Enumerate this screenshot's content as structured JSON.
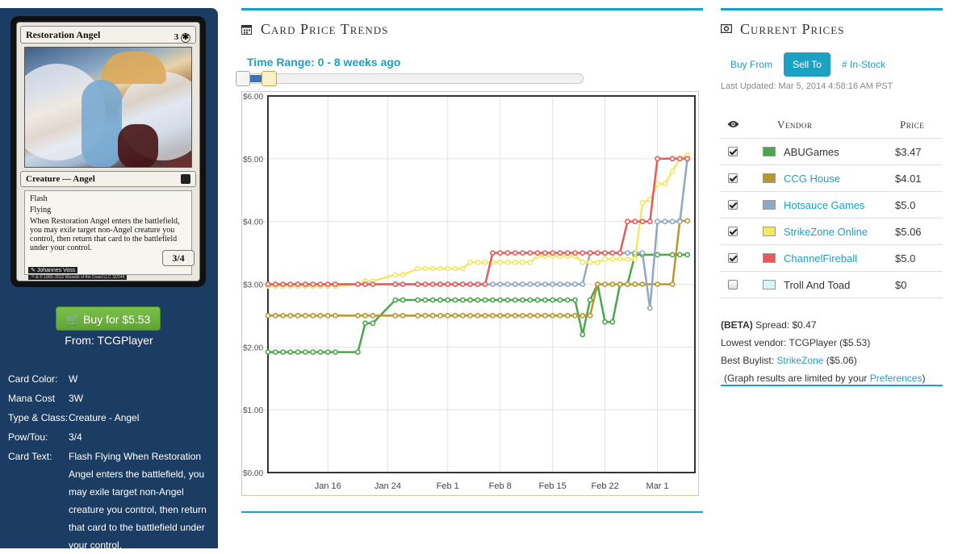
{
  "card": {
    "name": "Restoration Angel",
    "mana_text": "3",
    "mana_symbol": "✱",
    "type_line": "Creature — Angel",
    "ability_1": "Flash",
    "ability_2": "Flying",
    "rules_text": "When Restoration Angel enters the battlefield, you may exile target non-Angel creature you control, then return that card to the battlefield under your control.",
    "power_toughness": "3/4",
    "artist": "Johannes Voss",
    "copyright": "™ & © 1993–2012 Wizards of the Coast LLC 32/244"
  },
  "buy": {
    "label": "Buy for $5.53",
    "from": "From: TCGPlayer"
  },
  "info": [
    {
      "key": "Card Color:",
      "value": "W"
    },
    {
      "key": "Mana Cost",
      "value": "3W"
    },
    {
      "key": "Type & Class:",
      "value": "Creature - Angel"
    },
    {
      "key": "Pow/Tou:",
      "value": "3/4"
    },
    {
      "key": "Card Text:",
      "value": "Flash Flying When Restoration Angel enters the battlefield, you may exile target non-Angel creature you control, then return that card to the battlefield under your control."
    }
  ],
  "trends": {
    "title": "Card Price Trends",
    "icon": "calendar-icon",
    "range_label": "Time Range: 0 - 8 weeks ago"
  },
  "prices": {
    "title": "Current Prices",
    "icon": "money-icon",
    "tabs": [
      "Buy From",
      "Sell To",
      "# In-Stock"
    ],
    "active_tab": "Sell To",
    "last_updated": "Last Updated: Mar 5, 2014 4:58:16 AM PST",
    "col_visibility_icon": "eye-icon",
    "col_vendor": "Vendor",
    "col_price": "Price",
    "vendors": [
      {
        "name": "ABUGames",
        "price": "$3.47",
        "color": "#4aa74a",
        "checked": true,
        "link": false
      },
      {
        "name": "CCG House",
        "price": "$4.01",
        "color": "#b8962e",
        "checked": true,
        "link": true
      },
      {
        "name": "Hotsauce Games",
        "price": "$5.0",
        "color": "#8fa8c4",
        "checked": true,
        "link": true
      },
      {
        "name": "StrikeZone Online",
        "price": "$5.06",
        "color": "#f5e663",
        "checked": true,
        "link": true
      },
      {
        "name": "ChannelFireball",
        "price": "$5.0",
        "color": "#e85a5a",
        "checked": true,
        "link": true
      },
      {
        "name": "Troll And Toad",
        "price": "$0",
        "color": "#d8f6fa",
        "checked": false,
        "link": false
      }
    ],
    "beta_label": "(BETA)",
    "spread": "Spread: $0.47",
    "lowest_vendor": "Lowest vendor: TCGPlayer ($5.53)",
    "best_buylist_prefix": "Best Buylist:",
    "best_buylist_link": "StrikeZone",
    "best_buylist_suffix": "($5.06)",
    "graph_note_prefix": "(Graph results are limited by your",
    "graph_note_link": "Preferences",
    "graph_note_suffix": ")"
  },
  "chart_data": {
    "type": "line",
    "title": "",
    "xlabel": "",
    "ylabel": "",
    "x_ticks": [
      "Jan 16",
      "Jan 24",
      "Feb 1",
      "Feb 8",
      "Feb 15",
      "Feb 22",
      "Mar 1"
    ],
    "x_tick_days": [
      16,
      24,
      32,
      39,
      46,
      53,
      60
    ],
    "xlim_days": [
      8,
      65
    ],
    "y_ticks": [
      "$0.00",
      "$1.00",
      "$2.00",
      "$3.00",
      "$4.00",
      "$5.00",
      "$6.00"
    ],
    "ylim": [
      0,
      6
    ],
    "grid": true,
    "series": [
      {
        "name": "ABUGames",
        "color": "#4aa74a",
        "points": [
          [
            8,
            1.92
          ],
          [
            9,
            1.92
          ],
          [
            10,
            1.92
          ],
          [
            11,
            1.92
          ],
          [
            12,
            1.92
          ],
          [
            13,
            1.92
          ],
          [
            14,
            1.92
          ],
          [
            15,
            1.92
          ],
          [
            16,
            1.92
          ],
          [
            17,
            1.92
          ],
          [
            20,
            1.92
          ],
          [
            21,
            2.38
          ],
          [
            22,
            2.38
          ],
          [
            25,
            2.75
          ],
          [
            26,
            2.75
          ],
          [
            28,
            2.75
          ],
          [
            29,
            2.75
          ],
          [
            30,
            2.75
          ],
          [
            31,
            2.75
          ],
          [
            32,
            2.75
          ],
          [
            33,
            2.75
          ],
          [
            34,
            2.75
          ],
          [
            35,
            2.75
          ],
          [
            36,
            2.75
          ],
          [
            37,
            2.75
          ],
          [
            38,
            2.75
          ],
          [
            39,
            2.75
          ],
          [
            40,
            2.75
          ],
          [
            41,
            2.75
          ],
          [
            42,
            2.75
          ],
          [
            43,
            2.75
          ],
          [
            44,
            2.75
          ],
          [
            45,
            2.75
          ],
          [
            46,
            2.75
          ],
          [
            47,
            2.75
          ],
          [
            48,
            2.75
          ],
          [
            49,
            2.75
          ],
          [
            50,
            2.2
          ],
          [
            51,
            2.75
          ],
          [
            52,
            3.0
          ],
          [
            53,
            2.4
          ],
          [
            54,
            2.4
          ],
          [
            55,
            3.0
          ],
          [
            56,
            3.0
          ],
          [
            57,
            3.47
          ],
          [
            58,
            3.47
          ],
          [
            60,
            3.47
          ],
          [
            62,
            3.47
          ],
          [
            63,
            3.47
          ],
          [
            64,
            3.47
          ]
        ]
      },
      {
        "name": "CCG House",
        "color": "#b8962e",
        "points": [
          [
            8,
            2.5
          ],
          [
            9,
            2.5
          ],
          [
            10,
            2.5
          ],
          [
            11,
            2.5
          ],
          [
            12,
            2.5
          ],
          [
            13,
            2.5
          ],
          [
            14,
            2.5
          ],
          [
            15,
            2.5
          ],
          [
            16,
            2.5
          ],
          [
            17,
            2.5
          ],
          [
            20,
            2.5
          ],
          [
            21,
            2.5
          ],
          [
            22,
            2.5
          ],
          [
            25,
            2.5
          ],
          [
            26,
            2.5
          ],
          [
            28,
            2.5
          ],
          [
            29,
            2.5
          ],
          [
            30,
            2.5
          ],
          [
            31,
            2.5
          ],
          [
            32,
            2.5
          ],
          [
            33,
            2.5
          ],
          [
            34,
            2.5
          ],
          [
            35,
            2.5
          ],
          [
            36,
            2.5
          ],
          [
            37,
            2.5
          ],
          [
            38,
            2.5
          ],
          [
            39,
            2.5
          ],
          [
            40,
            2.5
          ],
          [
            41,
            2.5
          ],
          [
            42,
            2.5
          ],
          [
            43,
            2.5
          ],
          [
            44,
            2.5
          ],
          [
            45,
            2.5
          ],
          [
            46,
            2.5
          ],
          [
            47,
            2.5
          ],
          [
            48,
            2.5
          ],
          [
            49,
            2.5
          ],
          [
            50,
            2.5
          ],
          [
            51,
            2.5
          ],
          [
            52,
            3.0
          ],
          [
            53,
            3.0
          ],
          [
            54,
            3.0
          ],
          [
            55,
            3.0
          ],
          [
            56,
            3.0
          ],
          [
            57,
            3.0
          ],
          [
            58,
            3.0
          ],
          [
            60,
            3.0
          ],
          [
            62,
            3.0
          ],
          [
            63,
            4.01
          ],
          [
            64,
            4.01
          ]
        ]
      },
      {
        "name": "Hotsauce Games",
        "color": "#8fa8c4",
        "points": [
          [
            8,
            3.0
          ],
          [
            12,
            3.0
          ],
          [
            17,
            3.0
          ],
          [
            22,
            3.0
          ],
          [
            25,
            3.0
          ],
          [
            28,
            3.0
          ],
          [
            31,
            3.0
          ],
          [
            33,
            3.0
          ],
          [
            36,
            3.0
          ],
          [
            38,
            3.0
          ],
          [
            39,
            3.0
          ],
          [
            40,
            3.0
          ],
          [
            41,
            3.0
          ],
          [
            42,
            3.0
          ],
          [
            43,
            3.0
          ],
          [
            44,
            3.0
          ],
          [
            45,
            3.0
          ],
          [
            46,
            3.0
          ],
          [
            47,
            3.0
          ],
          [
            48,
            3.0
          ],
          [
            49,
            3.0
          ],
          [
            50,
            3.0
          ],
          [
            51,
            3.5
          ],
          [
            52,
            3.5
          ],
          [
            53,
            3.5
          ],
          [
            54,
            3.5
          ],
          [
            55,
            3.5
          ],
          [
            56,
            3.5
          ],
          [
            57,
            3.5
          ],
          [
            58,
            3.5
          ],
          [
            59,
            2.62
          ],
          [
            60,
            4.0
          ],
          [
            61,
            4.0
          ],
          [
            62,
            4.0
          ],
          [
            63,
            4.0
          ],
          [
            64,
            5.0
          ]
        ]
      },
      {
        "name": "StrikeZone Online",
        "color": "#f5e663",
        "points": [
          [
            8,
            2.97
          ],
          [
            9,
            2.97
          ],
          [
            10,
            2.97
          ],
          [
            11,
            2.97
          ],
          [
            12,
            2.97
          ],
          [
            13,
            2.97
          ],
          [
            14,
            2.97
          ],
          [
            15,
            2.97
          ],
          [
            16,
            2.97
          ],
          [
            17,
            2.97
          ],
          [
            20,
            3.0
          ],
          [
            21,
            3.05
          ],
          [
            22,
            3.05
          ],
          [
            25,
            3.15
          ],
          [
            26,
            3.15
          ],
          [
            28,
            3.25
          ],
          [
            29,
            3.25
          ],
          [
            30,
            3.25
          ],
          [
            31,
            3.25
          ],
          [
            32,
            3.25
          ],
          [
            33,
            3.25
          ],
          [
            34,
            3.25
          ],
          [
            35,
            3.35
          ],
          [
            36,
            3.35
          ],
          [
            37,
            3.35
          ],
          [
            38,
            3.35
          ],
          [
            39,
            3.35
          ],
          [
            40,
            3.35
          ],
          [
            41,
            3.35
          ],
          [
            42,
            3.35
          ],
          [
            43,
            3.35
          ],
          [
            44,
            3.45
          ],
          [
            45,
            3.45
          ],
          [
            46,
            3.45
          ],
          [
            47,
            3.45
          ],
          [
            48,
            3.45
          ],
          [
            49,
            3.45
          ],
          [
            50,
            3.35
          ],
          [
            51,
            3.35
          ],
          [
            52,
            3.35
          ],
          [
            53,
            3.4
          ],
          [
            54,
            3.4
          ],
          [
            55,
            3.4
          ],
          [
            56,
            3.4
          ],
          [
            57,
            3.4
          ],
          [
            58,
            4.3
          ],
          [
            59,
            4.35
          ],
          [
            60,
            4.6
          ],
          [
            61,
            4.6
          ],
          [
            62,
            4.8
          ],
          [
            63,
            5.0
          ],
          [
            64,
            5.06
          ]
        ]
      },
      {
        "name": "ChannelFireball",
        "color": "#e85a5a",
        "points": [
          [
            8,
            3.0
          ],
          [
            9,
            3.0
          ],
          [
            10,
            3.0
          ],
          [
            11,
            3.0
          ],
          [
            12,
            3.0
          ],
          [
            13,
            3.0
          ],
          [
            14,
            3.0
          ],
          [
            15,
            3.0
          ],
          [
            16,
            3.0
          ],
          [
            17,
            3.0
          ],
          [
            20,
            3.0
          ],
          [
            21,
            3.0
          ],
          [
            22,
            3.0
          ],
          [
            25,
            3.0
          ],
          [
            26,
            3.0
          ],
          [
            28,
            3.0
          ],
          [
            29,
            3.0
          ],
          [
            30,
            3.0
          ],
          [
            31,
            3.0
          ],
          [
            32,
            3.0
          ],
          [
            33,
            3.0
          ],
          [
            34,
            3.0
          ],
          [
            35,
            3.0
          ],
          [
            36,
            3.0
          ],
          [
            37,
            3.0
          ],
          [
            38,
            3.5
          ],
          [
            39,
            3.5
          ],
          [
            40,
            3.5
          ],
          [
            41,
            3.5
          ],
          [
            42,
            3.5
          ],
          [
            43,
            3.5
          ],
          [
            44,
            3.5
          ],
          [
            45,
            3.5
          ],
          [
            46,
            3.5
          ],
          [
            47,
            3.5
          ],
          [
            48,
            3.5
          ],
          [
            49,
            3.5
          ],
          [
            50,
            3.5
          ],
          [
            51,
            3.5
          ],
          [
            52,
            3.5
          ],
          [
            53,
            3.5
          ],
          [
            54,
            3.5
          ],
          [
            55,
            3.5
          ],
          [
            56,
            4.0
          ],
          [
            57,
            4.0
          ],
          [
            58,
            4.0
          ],
          [
            59,
            4.0
          ],
          [
            60,
            5.0
          ],
          [
            62,
            5.0
          ],
          [
            63,
            5.0
          ],
          [
            64,
            5.0
          ]
        ]
      }
    ]
  }
}
